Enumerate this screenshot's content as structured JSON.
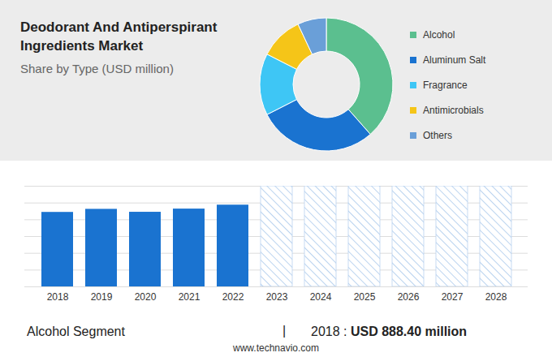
{
  "chart_data": [
    {
      "type": "donut",
      "title": "Deodorant And Antiperspirant Ingredients Market",
      "subtitle": "Share by Type (USD million)",
      "categories": [
        "Alcohol",
        "Aluminum Salt",
        "Fragrance",
        "Antimicrobials",
        "Others"
      ],
      "values": [
        38.5,
        29,
        15,
        10.5,
        7
      ],
      "colors": [
        "#5bbf8f",
        "#1a73d0",
        "#3ec6f5",
        "#f5c518",
        "#6a9fd8"
      ],
      "legend": "right"
    },
    {
      "type": "bar",
      "categories": [
        "2018",
        "2019",
        "2020",
        "2021",
        "2022",
        "2023",
        "2024",
        "2025",
        "2026",
        "2027",
        "2028"
      ],
      "values": [
        888.4,
        925,
        890,
        928,
        975,
        null,
        null,
        null,
        null,
        null,
        null
      ],
      "color": "#1a73d0",
      "ylim": [
        0,
        1200
      ],
      "yticks": [
        0,
        200,
        400,
        600,
        800,
        1000,
        1200
      ],
      "grid": true,
      "tick_labels": "x",
      "annotations": [
        "Alcohol Segment",
        "|",
        "2018 :",
        "USD 888.40 million",
        "www.technavio.com"
      ]
    }
  ]
}
